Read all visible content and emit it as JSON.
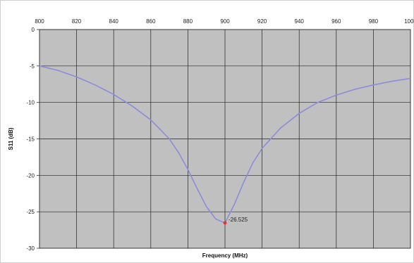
{
  "chart_data": {
    "type": "line",
    "title": "",
    "xlabel": "Frequency (MHz)",
    "ylabel": "S11 (dB)",
    "xlim": [
      800,
      1000
    ],
    "ylim": [
      -30,
      0
    ],
    "x_ticks": [
      "800",
      "820",
      "840",
      "860",
      "880",
      "900",
      "920",
      "940",
      "960",
      "980",
      "1000"
    ],
    "y_ticks": [
      "0",
      "-5",
      "-10",
      "-15",
      "-20",
      "-25",
      "-30"
    ],
    "x_tick_values": [
      800,
      820,
      840,
      860,
      880,
      900,
      920,
      940,
      960,
      980,
      1000
    ],
    "y_tick_values": [
      0,
      -5,
      -10,
      -15,
      -20,
      -25,
      -30
    ],
    "grid": true,
    "x_axis_position": "top",
    "legend": "none",
    "series": [
      {
        "color": "#8c8cd8",
        "x": [
          800,
          810,
          820,
          830,
          840,
          850,
          860,
          870,
          875,
          880,
          885,
          890,
          895,
          900,
          905,
          910,
          915,
          920,
          930,
          940,
          950,
          960,
          970,
          980,
          990,
          1000
        ],
        "y": [
          -5.0,
          -5.6,
          -6.5,
          -7.6,
          -8.9,
          -10.5,
          -12.4,
          -15.0,
          -16.9,
          -19.2,
          -21.8,
          -24.3,
          -26.0,
          -26.525,
          -24.0,
          -21.0,
          -18.3,
          -16.3,
          -13.5,
          -11.5,
          -10.0,
          -9.0,
          -8.2,
          -7.6,
          -7.1,
          -6.7
        ]
      }
    ],
    "marker": {
      "x": 900,
      "y": -26.525,
      "label": "-26.525",
      "color": "#e8302a"
    },
    "colors": {
      "plot_background": "#c0c0c0",
      "grid": "#222222"
    }
  }
}
